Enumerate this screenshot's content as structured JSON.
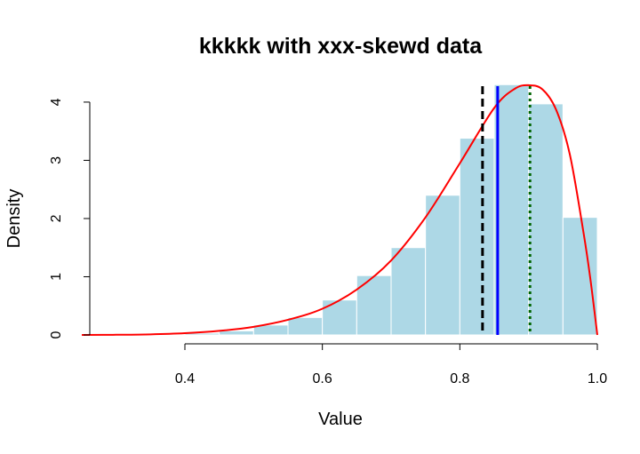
{
  "chart_data": {
    "type": "bar",
    "title": "kkkkk with xxx-skewd data",
    "xlabel": "Value",
    "ylabel": "Density",
    "xlim": [
      0.25,
      1.0
    ],
    "ylim": [
      0,
      4.35
    ],
    "x_ticks": [
      "0.4",
      "0.6",
      "0.8",
      "1.0"
    ],
    "y_ticks": [
      "0",
      "1",
      "2",
      "3",
      "4"
    ],
    "histogram": {
      "bin_edges": [
        0.35,
        0.4,
        0.45,
        0.5,
        0.55,
        0.6,
        0.65,
        0.7,
        0.75,
        0.8,
        0.85,
        0.9,
        0.95,
        1.0
      ],
      "density": [
        0.01,
        0.03,
        0.07,
        0.17,
        0.3,
        0.6,
        1.02,
        1.5,
        2.4,
        3.38,
        4.3,
        3.97,
        2.02
      ],
      "color": "#add8e6"
    },
    "density_curve": {
      "color": "#ff0000",
      "x": [
        0.25,
        0.3,
        0.35,
        0.4,
        0.45,
        0.5,
        0.55,
        0.6,
        0.65,
        0.7,
        0.75,
        0.8,
        0.85,
        0.88,
        0.9,
        0.92,
        0.94,
        0.96,
        0.98,
        0.99,
        1.0
      ],
      "y": [
        0.0,
        0.003,
        0.01,
        0.03,
        0.07,
        0.14,
        0.26,
        0.45,
        0.78,
        1.28,
        2.02,
        2.95,
        3.9,
        4.23,
        4.29,
        4.22,
        3.87,
        3.1,
        1.75,
        0.95,
        0.0
      ]
    },
    "vlines": [
      {
        "x": 0.833,
        "color": "#000000",
        "style": "dashed"
      },
      {
        "x": 0.855,
        "color": "#0000ff",
        "style": "solid"
      },
      {
        "x": 0.902,
        "color": "#006400",
        "style": "dotted"
      }
    ]
  }
}
